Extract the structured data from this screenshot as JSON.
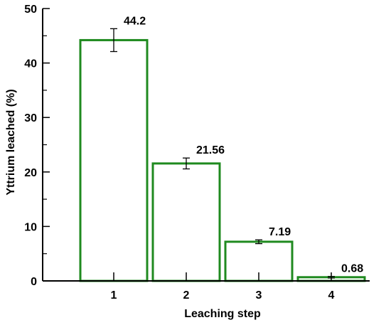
{
  "chart_data": {
    "type": "bar",
    "categories": [
      "1",
      "2",
      "3",
      "4"
    ],
    "values": [
      44.2,
      21.56,
      7.19,
      0.68
    ],
    "data_labels": [
      "44.2",
      "21.56",
      "7.19",
      "0.68"
    ],
    "error_bars": [
      2.1,
      1.0,
      0.35,
      0.15
    ],
    "xlabel": "Leaching step",
    "ylabel": "Yttrium leached (%)",
    "ylim": [
      0,
      50
    ],
    "yticks": [
      0,
      10,
      20,
      30,
      40,
      50
    ],
    "grid": false,
    "bar_fill": "#ffffff",
    "bar_edge_color": "#1f8a1f"
  }
}
